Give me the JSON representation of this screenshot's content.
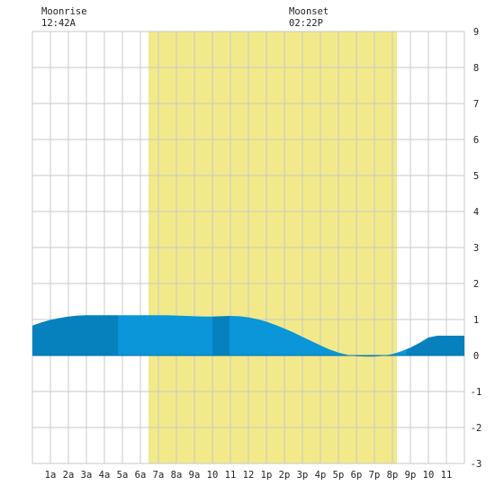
{
  "chart_data": {
    "type": "area",
    "title": "",
    "xlabel": "",
    "ylabel": "",
    "xlim": [
      -1,
      23
    ],
    "ylim": [
      -3,
      9
    ],
    "grid": true,
    "x_tick_labels": [
      "1a",
      "2a",
      "3a",
      "4a",
      "5a",
      "6a",
      "7a",
      "8a",
      "9a",
      "10",
      "11",
      "12",
      "1p",
      "2p",
      "3p",
      "4p",
      "5p",
      "6p",
      "7p",
      "8p",
      "9p",
      "10",
      "11"
    ],
    "y_tick_labels": [
      "-3",
      "-2",
      "-1",
      "0",
      "1",
      "2",
      "3",
      "4",
      "5",
      "6",
      "7",
      "8",
      "9"
    ],
    "daylight_band": [
      5.45,
      19.25
    ],
    "annotations": [
      {
        "title": "Moonrise",
        "time": "12:42A",
        "x": 0.7
      },
      {
        "title": "Moonset",
        "time": "02:22P",
        "x": 14.37
      }
    ],
    "series": [
      {
        "x": [
          -1.0,
          -0.5,
          0,
          0.5,
          1,
          1.5,
          2,
          2.5,
          3,
          3.5,
          4,
          4.5,
          5,
          5.5,
          6,
          6.5,
          7,
          7.5,
          8,
          8.5,
          9,
          9.5,
          10,
          10.5,
          11,
          11.5,
          12,
          12.5,
          13,
          13.5,
          14,
          14.5,
          15,
          15.5,
          16,
          16.5,
          17,
          17.5,
          18,
          18.5,
          19,
          19.5,
          20,
          20.5,
          21,
          21.5,
          22,
          22.5,
          23
        ],
        "values": [
          0.83,
          0.92,
          0.99,
          1.04,
          1.08,
          1.11,
          1.12,
          1.12,
          1.12,
          1.12,
          1.12,
          1.12,
          1.12,
          1.12,
          1.12,
          1.12,
          1.11,
          1.1,
          1.09,
          1.08,
          1.08,
          1.09,
          1.1,
          1.09,
          1.06,
          1.01,
          0.94,
          0.85,
          0.75,
          0.64,
          0.52,
          0.4,
          0.28,
          0.17,
          0.08,
          0.02,
          -0.02,
          -0.03,
          -0.03,
          -0.01,
          0.04,
          0.12,
          0.22,
          0.35,
          0.5,
          0.55,
          0.55,
          0.55,
          0.55
        ]
      }
    ],
    "shade_bands": [
      {
        "from": -1.0,
        "to": 3.75,
        "shade": "dark"
      },
      {
        "from": 3.75,
        "to": 9.0,
        "shade": "light"
      },
      {
        "from": 9.0,
        "to": 9.95,
        "shade": "dark"
      },
      {
        "from": 9.95,
        "to": 19.8,
        "shade": "light"
      },
      {
        "from": 19.8,
        "to": 23.0,
        "shade": "dark"
      }
    ],
    "colors": {
      "background": "#ffffff",
      "grid": "#c8c8c8",
      "daylight": "#f2e98a",
      "tide_light": "#0a96d8",
      "tide_dark": "#0781bd",
      "text": "#222222"
    }
  }
}
